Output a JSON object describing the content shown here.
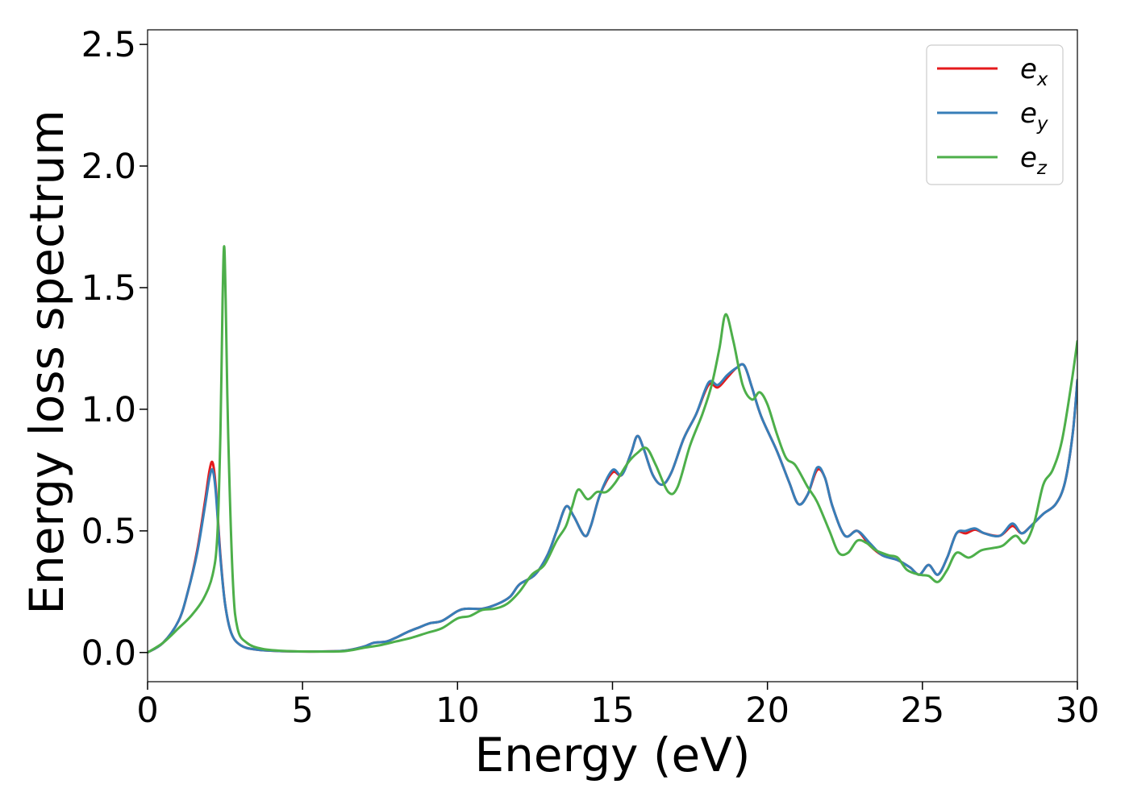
{
  "chart_data": {
    "type": "line",
    "title": "",
    "xlabel": "Energy (eV)",
    "ylabel": "Energy loss spectrum",
    "xlim": [
      0,
      30
    ],
    "ylim": [
      -0.12,
      2.56
    ],
    "xticks": [
      0,
      5,
      10,
      15,
      20,
      25,
      30
    ],
    "xtick_labels": [
      "0",
      "5",
      "10",
      "15",
      "20",
      "25",
      "30"
    ],
    "yticks": [
      0.0,
      0.5,
      1.0,
      1.5,
      2.0,
      2.5
    ],
    "ytick_labels": [
      "0.0",
      "0.5",
      "1.0",
      "1.5",
      "2.0",
      "2.5"
    ],
    "grid": false,
    "legend_position": "top-right",
    "series": [
      {
        "name": "e",
        "subscript": "x",
        "color": "#e41a1c",
        "points": [
          [
            0,
            0
          ],
          [
            0.5,
            0.04
          ],
          [
            1.0,
            0.13
          ],
          [
            1.3,
            0.25
          ],
          [
            1.6,
            0.42
          ],
          [
            1.85,
            0.62
          ],
          [
            2.0,
            0.75
          ],
          [
            2.1,
            0.78
          ],
          [
            2.2,
            0.68
          ],
          [
            2.35,
            0.4
          ],
          [
            2.5,
            0.2
          ],
          [
            2.7,
            0.08
          ],
          [
            3.0,
            0.03
          ],
          [
            3.5,
            0.012
          ],
          [
            4.5,
            0.005
          ],
          [
            6.0,
            0.005
          ],
          [
            6.5,
            0.01
          ],
          [
            7.0,
            0.025
          ],
          [
            7.3,
            0.04
          ],
          [
            7.7,
            0.045
          ],
          [
            8.0,
            0.06
          ],
          [
            8.4,
            0.085
          ],
          [
            8.8,
            0.105
          ],
          [
            9.1,
            0.12
          ],
          [
            9.5,
            0.13
          ],
          [
            10.0,
            0.17
          ],
          [
            10.3,
            0.18
          ],
          [
            10.8,
            0.18
          ],
          [
            11.3,
            0.2
          ],
          [
            11.7,
            0.23
          ],
          [
            12.0,
            0.28
          ],
          [
            12.5,
            0.32
          ],
          [
            12.9,
            0.4
          ],
          [
            13.2,
            0.5
          ],
          [
            13.5,
            0.6
          ],
          [
            13.75,
            0.56
          ],
          [
            14.1,
            0.48
          ],
          [
            14.3,
            0.52
          ],
          [
            14.6,
            0.65
          ],
          [
            15.0,
            0.74
          ],
          [
            15.3,
            0.73
          ],
          [
            15.6,
            0.82
          ],
          [
            15.8,
            0.89
          ],
          [
            16.0,
            0.84
          ],
          [
            16.3,
            0.73
          ],
          [
            16.6,
            0.69
          ],
          [
            16.9,
            0.74
          ],
          [
            17.3,
            0.88
          ],
          [
            17.7,
            0.98
          ],
          [
            18.1,
            1.1
          ],
          [
            18.4,
            1.09
          ],
          [
            18.7,
            1.13
          ],
          [
            19.0,
            1.17
          ],
          [
            19.25,
            1.18
          ],
          [
            19.5,
            1.09
          ],
          [
            19.8,
            0.97
          ],
          [
            20.3,
            0.83
          ],
          [
            20.7,
            0.7
          ],
          [
            21.0,
            0.61
          ],
          [
            21.3,
            0.65
          ],
          [
            21.6,
            0.75
          ],
          [
            21.85,
            0.72
          ],
          [
            22.1,
            0.6
          ],
          [
            22.5,
            0.48
          ],
          [
            22.9,
            0.5
          ],
          [
            23.3,
            0.44
          ],
          [
            23.7,
            0.4
          ],
          [
            24.2,
            0.38
          ],
          [
            24.6,
            0.35
          ],
          [
            24.9,
            0.32
          ],
          [
            25.2,
            0.36
          ],
          [
            25.5,
            0.32
          ],
          [
            25.8,
            0.39
          ],
          [
            26.1,
            0.49
          ],
          [
            26.4,
            0.49
          ],
          [
            26.7,
            0.505
          ],
          [
            27.0,
            0.49
          ],
          [
            27.5,
            0.48
          ],
          [
            27.9,
            0.52
          ],
          [
            28.2,
            0.49
          ],
          [
            28.5,
            0.52
          ],
          [
            28.9,
            0.57
          ],
          [
            29.3,
            0.61
          ],
          [
            29.6,
            0.7
          ],
          [
            29.85,
            0.9
          ],
          [
            30.0,
            1.12
          ]
        ]
      },
      {
        "name": "e",
        "subscript": "y",
        "color": "#377eb8",
        "points": [
          [
            0,
            0
          ],
          [
            0.5,
            0.04
          ],
          [
            1.0,
            0.13
          ],
          [
            1.3,
            0.25
          ],
          [
            1.6,
            0.41
          ],
          [
            1.85,
            0.6
          ],
          [
            2.0,
            0.72
          ],
          [
            2.1,
            0.75
          ],
          [
            2.2,
            0.66
          ],
          [
            2.35,
            0.39
          ],
          [
            2.5,
            0.2
          ],
          [
            2.7,
            0.08
          ],
          [
            3.0,
            0.03
          ],
          [
            3.5,
            0.012
          ],
          [
            4.5,
            0.005
          ],
          [
            6.0,
            0.005
          ],
          [
            6.5,
            0.01
          ],
          [
            7.0,
            0.025
          ],
          [
            7.3,
            0.04
          ],
          [
            7.7,
            0.045
          ],
          [
            8.0,
            0.06
          ],
          [
            8.4,
            0.085
          ],
          [
            8.8,
            0.105
          ],
          [
            9.1,
            0.12
          ],
          [
            9.5,
            0.13
          ],
          [
            10.0,
            0.17
          ],
          [
            10.3,
            0.18
          ],
          [
            10.8,
            0.18
          ],
          [
            11.3,
            0.2
          ],
          [
            11.7,
            0.23
          ],
          [
            12.0,
            0.28
          ],
          [
            12.5,
            0.32
          ],
          [
            12.9,
            0.4
          ],
          [
            13.2,
            0.5
          ],
          [
            13.5,
            0.6
          ],
          [
            13.75,
            0.56
          ],
          [
            14.1,
            0.48
          ],
          [
            14.3,
            0.52
          ],
          [
            14.6,
            0.65
          ],
          [
            15.0,
            0.75
          ],
          [
            15.3,
            0.73
          ],
          [
            15.6,
            0.82
          ],
          [
            15.8,
            0.89
          ],
          [
            16.0,
            0.84
          ],
          [
            16.3,
            0.73
          ],
          [
            16.6,
            0.69
          ],
          [
            16.9,
            0.74
          ],
          [
            17.3,
            0.88
          ],
          [
            17.7,
            0.98
          ],
          [
            18.1,
            1.11
          ],
          [
            18.4,
            1.1
          ],
          [
            18.7,
            1.14
          ],
          [
            19.0,
            1.17
          ],
          [
            19.25,
            1.18
          ],
          [
            19.5,
            1.09
          ],
          [
            19.8,
            0.97
          ],
          [
            20.3,
            0.83
          ],
          [
            20.7,
            0.7
          ],
          [
            21.0,
            0.61
          ],
          [
            21.3,
            0.65
          ],
          [
            21.6,
            0.76
          ],
          [
            21.85,
            0.72
          ],
          [
            22.1,
            0.6
          ],
          [
            22.5,
            0.48
          ],
          [
            22.9,
            0.5
          ],
          [
            23.3,
            0.45
          ],
          [
            23.7,
            0.4
          ],
          [
            24.2,
            0.38
          ],
          [
            24.6,
            0.35
          ],
          [
            24.9,
            0.32
          ],
          [
            25.2,
            0.36
          ],
          [
            25.5,
            0.32
          ],
          [
            25.8,
            0.39
          ],
          [
            26.1,
            0.49
          ],
          [
            26.4,
            0.5
          ],
          [
            26.7,
            0.51
          ],
          [
            27.0,
            0.49
          ],
          [
            27.5,
            0.48
          ],
          [
            27.9,
            0.53
          ],
          [
            28.2,
            0.49
          ],
          [
            28.5,
            0.52
          ],
          [
            28.9,
            0.57
          ],
          [
            29.3,
            0.61
          ],
          [
            29.6,
            0.7
          ],
          [
            29.85,
            0.9
          ],
          [
            30.0,
            1.12
          ]
        ]
      },
      {
        "name": "e",
        "subscript": "z",
        "color": "#4daf4a",
        "points": [
          [
            0,
            0
          ],
          [
            0.5,
            0.04
          ],
          [
            1.0,
            0.1
          ],
          [
            1.4,
            0.15
          ],
          [
            1.8,
            0.22
          ],
          [
            2.1,
            0.32
          ],
          [
            2.25,
            0.48
          ],
          [
            2.35,
            0.9
          ],
          [
            2.42,
            1.45
          ],
          [
            2.47,
            1.67
          ],
          [
            2.52,
            1.45
          ],
          [
            2.6,
            0.9
          ],
          [
            2.75,
            0.3
          ],
          [
            2.9,
            0.1
          ],
          [
            3.2,
            0.04
          ],
          [
            3.7,
            0.015
          ],
          [
            4.5,
            0.006
          ],
          [
            6.0,
            0.004
          ],
          [
            6.5,
            0.008
          ],
          [
            7.0,
            0.02
          ],
          [
            7.5,
            0.03
          ],
          [
            8.0,
            0.045
          ],
          [
            8.5,
            0.06
          ],
          [
            9.0,
            0.08
          ],
          [
            9.5,
            0.1
          ],
          [
            10.0,
            0.14
          ],
          [
            10.4,
            0.15
          ],
          [
            10.8,
            0.175
          ],
          [
            11.2,
            0.18
          ],
          [
            11.6,
            0.2
          ],
          [
            12.0,
            0.25
          ],
          [
            12.4,
            0.32
          ],
          [
            12.8,
            0.36
          ],
          [
            13.2,
            0.46
          ],
          [
            13.5,
            0.52
          ],
          [
            13.7,
            0.6
          ],
          [
            13.9,
            0.67
          ],
          [
            14.2,
            0.63
          ],
          [
            14.5,
            0.66
          ],
          [
            14.8,
            0.66
          ],
          [
            15.1,
            0.7
          ],
          [
            15.5,
            0.78
          ],
          [
            15.8,
            0.82
          ],
          [
            16.1,
            0.84
          ],
          [
            16.4,
            0.77
          ],
          [
            16.8,
            0.66
          ],
          [
            17.1,
            0.68
          ],
          [
            17.5,
            0.85
          ],
          [
            17.9,
            0.98
          ],
          [
            18.2,
            1.1
          ],
          [
            18.45,
            1.25
          ],
          [
            18.65,
            1.39
          ],
          [
            18.9,
            1.28
          ],
          [
            19.2,
            1.1
          ],
          [
            19.5,
            1.04
          ],
          [
            19.75,
            1.07
          ],
          [
            20.0,
            1.02
          ],
          [
            20.3,
            0.9
          ],
          [
            20.6,
            0.8
          ],
          [
            20.9,
            0.77
          ],
          [
            21.3,
            0.68
          ],
          [
            21.6,
            0.62
          ],
          [
            22.0,
            0.5
          ],
          [
            22.3,
            0.41
          ],
          [
            22.6,
            0.41
          ],
          [
            22.9,
            0.46
          ],
          [
            23.2,
            0.45
          ],
          [
            23.5,
            0.42
          ],
          [
            23.9,
            0.4
          ],
          [
            24.2,
            0.39
          ],
          [
            24.5,
            0.34
          ],
          [
            24.9,
            0.32
          ],
          [
            25.2,
            0.315
          ],
          [
            25.5,
            0.29
          ],
          [
            25.8,
            0.34
          ],
          [
            26.1,
            0.41
          ],
          [
            26.5,
            0.39
          ],
          [
            26.9,
            0.42
          ],
          [
            27.3,
            0.43
          ],
          [
            27.6,
            0.44
          ],
          [
            28.0,
            0.48
          ],
          [
            28.3,
            0.45
          ],
          [
            28.6,
            0.53
          ],
          [
            28.9,
            0.69
          ],
          [
            29.2,
            0.75
          ],
          [
            29.5,
            0.87
          ],
          [
            29.8,
            1.1
          ],
          [
            30.0,
            1.28
          ]
        ]
      }
    ]
  }
}
